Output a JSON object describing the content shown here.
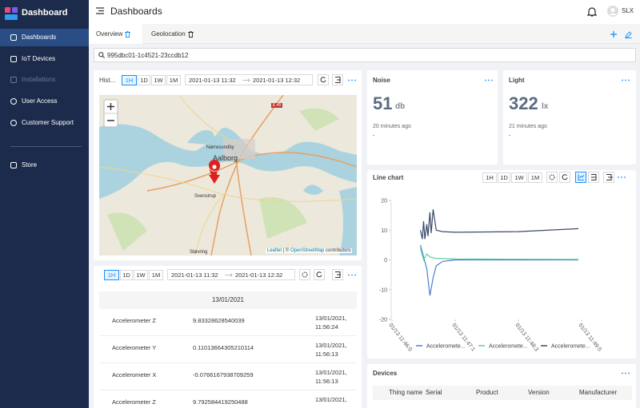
{
  "sidebar": {
    "brand": "Dashboard",
    "menu": [
      "Dashboards",
      "IoT Devices",
      "Installations",
      "User Access",
      "Customer Support",
      "Store"
    ]
  },
  "header": {
    "title": "Dashboards",
    "user": "SLX"
  },
  "tabs": [
    "Overview",
    "Geolocation"
  ],
  "search": "995dbc01-1c4521-23ccdb12",
  "map_panel": {
    "title": "Hist...",
    "ranges": [
      "1H",
      "1D",
      "1W",
      "1M"
    ],
    "from": "2021-01-13 11:32",
    "to": "2021-01-13 12:32",
    "places": [
      "Aalborg",
      "Nørresundby",
      "Svenstrup",
      "Støvring",
      "E 45"
    ],
    "attribution": [
      "Leaflet",
      "| ©",
      "OpenStreetMap",
      "contributors"
    ]
  },
  "history_panel": {
    "ranges": [
      "1H",
      "1D",
      "1W",
      "1M"
    ],
    "from": "2021-01-13 11:32",
    "to": "2021-01-13 12:32",
    "date_header": "13/01/2021",
    "rows": [
      [
        "Accelerometer Z",
        "9.83328628540039",
        "13/01/2021, 11:56:24"
      ],
      [
        "Accelerometer Y",
        "0.11013664305210114",
        "13/01/2021, 11:56:13"
      ],
      [
        "Accelerometer X",
        "-0.0766167938709259",
        "13/01/2021, 11:56:13"
      ],
      [
        "Accelerometer Z",
        "9.792584419250488",
        "13/01/2021,"
      ]
    ]
  },
  "noise": {
    "title": "Noise",
    "value": 51,
    "unit": "db",
    "time": "20 minutes ago",
    "status": "-"
  },
  "light": {
    "title": "Light",
    "value": 322,
    "unit": "lx",
    "time": "21 minutes ago",
    "status": "-"
  },
  "line_chart": {
    "type": "line",
    "title": "Line chart",
    "ranges": [
      "1H",
      "1D",
      "1W",
      "1M"
    ],
    "ylim": [
      -20,
      20
    ],
    "yticks": [
      20,
      10,
      0,
      -10,
      -20
    ],
    "xlim": [
      0,
      3
    ],
    "xticks": [
      {
        "value": 0,
        "label": "01/13 11:46:0"
      },
      {
        "value": 1,
        "label": "01/13 11:47:1"
      },
      {
        "value": 2,
        "label": "01/13 11:48:3"
      },
      {
        "value": 3,
        "label": "01/13 11:49:5"
      }
    ],
    "series": [
      {
        "name": "Acceleromete...",
        "color": "#4a7fd4",
        "x": [
          0.45,
          0.5,
          0.55,
          0.6,
          0.65,
          0.7,
          0.8,
          1.0,
          2.0,
          2.95
        ],
        "values": [
          5,
          1,
          -3,
          -12,
          -6,
          -2,
          -0.5,
          0,
          0,
          0
        ]
      },
      {
        "name": "Acceleromete...",
        "color": "#5ccfa4",
        "x": [
          0.45,
          0.5,
          0.55,
          0.6,
          0.7,
          1.0,
          2.95
        ],
        "values": [
          4,
          0,
          2,
          1,
          0.5,
          0.3,
          0.2
        ]
      },
      {
        "name": "Acceleromete...",
        "color": "#3b4a6b",
        "x": [
          0.45,
          0.48,
          0.5,
          0.52,
          0.55,
          0.57,
          0.6,
          0.62,
          0.65,
          0.7,
          0.8,
          1.0,
          2.0,
          2.95
        ],
        "values": [
          10,
          7,
          13,
          7,
          12,
          8,
          16,
          9,
          17,
          10,
          9.5,
          9.3,
          9.5,
          10.5
        ]
      }
    ]
  },
  "devices": {
    "title": "Devices",
    "columns": [
      "Thing name",
      "Serial",
      "Product",
      "Version",
      "Manufacturer"
    ]
  }
}
